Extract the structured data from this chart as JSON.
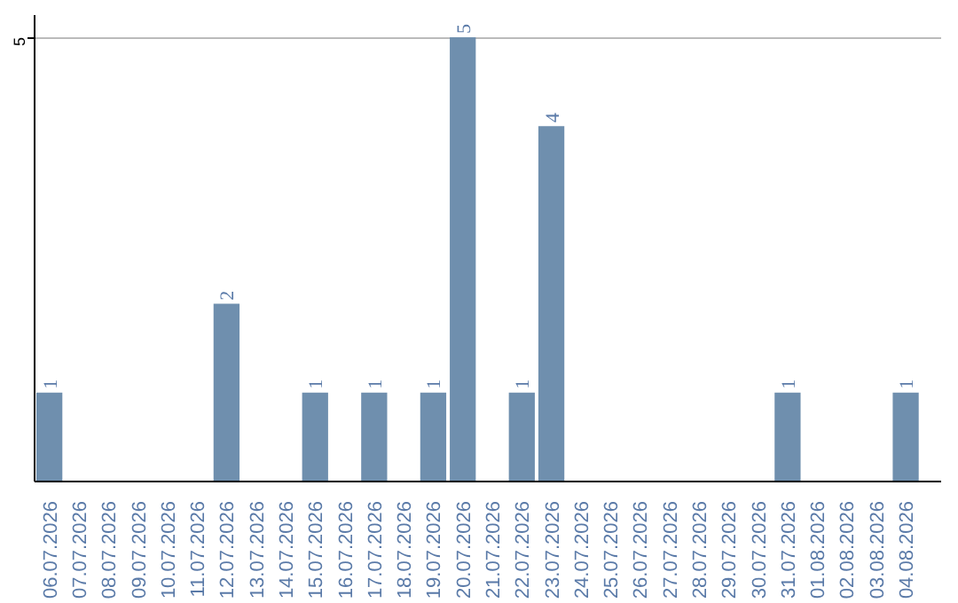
{
  "chart_data": {
    "type": "bar",
    "categories": [
      "06.07.2026",
      "07.07.2026",
      "08.07.2026",
      "09.07.2026",
      "10.07.2026",
      "11.07.2026",
      "12.07.2026",
      "13.07.2026",
      "14.07.2026",
      "15.07.2026",
      "16.07.2026",
      "17.07.2026",
      "18.07.2026",
      "19.07.2026",
      "20.07.2026",
      "21.07.2026",
      "22.07.2026",
      "23.07.2026",
      "24.07.2026",
      "25.07.2026",
      "26.07.2026",
      "27.07.2026",
      "28.07.2026",
      "29.07.2026",
      "30.07.2026",
      "31.07.2026",
      "01.08.2026",
      "02.08.2026",
      "03.08.2026",
      "04.08.2026"
    ],
    "values": [
      1,
      0,
      0,
      0,
      0,
      0,
      2,
      0,
      0,
      1,
      0,
      1,
      0,
      1,
      5,
      0,
      1,
      4,
      0,
      0,
      0,
      0,
      0,
      0,
      0,
      1,
      0,
      0,
      0,
      1
    ],
    "value_labels": [
      "1",
      null,
      null,
      null,
      null,
      null,
      "2",
      null,
      null,
      "1",
      null,
      "1",
      null,
      "1",
      "5",
      null,
      "1",
      "4",
      null,
      null,
      null,
      null,
      null,
      null,
      null,
      "1",
      null,
      null,
      null,
      "1"
    ],
    "color": "#6f8fae",
    "ylim": [
      0,
      5.25
    ],
    "yticks": [
      5
    ],
    "grid": "y"
  }
}
